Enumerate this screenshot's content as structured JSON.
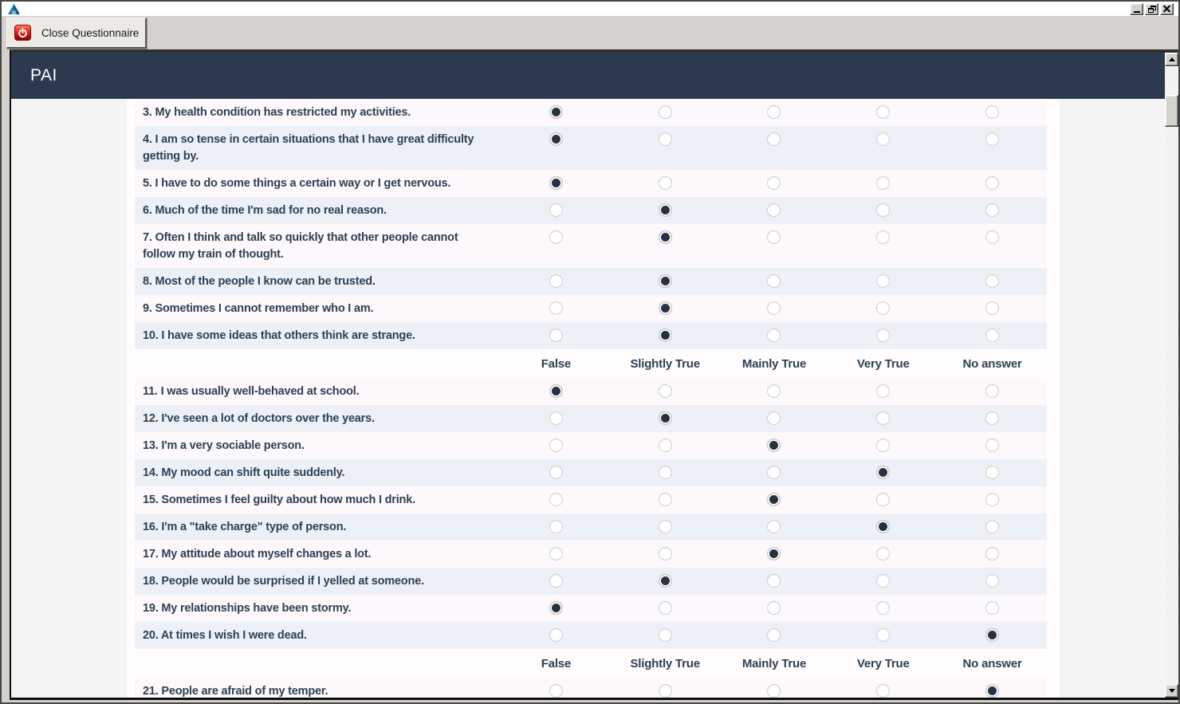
{
  "page": {
    "title": "PAI"
  },
  "toolbar": {
    "close_button": "Close Questionnaire"
  },
  "window_controls": {
    "minimize": "minimize",
    "restore": "restore",
    "close": "close"
  },
  "option_labels": [
    "False",
    "Slightly True",
    "Mainly True",
    "Very True",
    "No answer"
  ],
  "option_header_before": [
    11,
    21
  ],
  "questions": [
    {
      "number": "3",
      "text": "3. My health condition has restricted my activities.",
      "answer": "False"
    },
    {
      "number": "4",
      "text": "4. I am so tense in certain situations that I have great difficulty getting by.",
      "answer": "False"
    },
    {
      "number": "5",
      "text": "5. I have to do some things a certain way or I get nervous.",
      "answer": "False"
    },
    {
      "number": "6",
      "text": "6. Much of the time I'm sad for no real reason.",
      "answer": "Slightly True"
    },
    {
      "number": "7",
      "text": "7. Often I think and talk so quickly that other people cannot follow my train of thought.",
      "answer": "Slightly True"
    },
    {
      "number": "8",
      "text": "8. Most of the people I know can be trusted.",
      "answer": "Slightly True"
    },
    {
      "number": "9",
      "text": "9. Sometimes I cannot remember who I am.",
      "answer": "Slightly True"
    },
    {
      "number": "10",
      "text": "10. I have some ideas that others think are strange.",
      "answer": "Slightly True"
    },
    {
      "number": "11",
      "text": "11. I was usually well-behaved at school.",
      "answer": "False"
    },
    {
      "number": "12",
      "text": "12. I've seen a lot of doctors over the years.",
      "answer": "Slightly True"
    },
    {
      "number": "13",
      "text": "13. I'm a very sociable person.",
      "answer": "Mainly True"
    },
    {
      "number": "14",
      "text": "14. My mood can shift quite suddenly.",
      "answer": "Very True"
    },
    {
      "number": "15",
      "text": "15. Sometimes I feel guilty about how much I drink.",
      "answer": "Mainly True"
    },
    {
      "number": "16",
      "text": "16. I'm a \"take charge\" type of person.",
      "answer": "Very True"
    },
    {
      "number": "17",
      "text": "17. My attitude about myself changes a lot.",
      "answer": "Mainly True"
    },
    {
      "number": "18",
      "text": "18. People would be surprised if I yelled at someone.",
      "answer": "Slightly True"
    },
    {
      "number": "19",
      "text": "19. My relationships have been stormy.",
      "answer": "False"
    },
    {
      "number": "20",
      "text": "20. At times I wish I were dead.",
      "answer": "No answer"
    },
    {
      "number": "21",
      "text": "21. People are afraid of my temper.",
      "answer": "No answer"
    }
  ],
  "colors": {
    "header_bg": "#2b3a4f",
    "question_text": "#2e4054",
    "row_odd": "#fdf8fb",
    "row_even": "#edf1f7",
    "body_bg": "#f4f4f5",
    "radio_selected": "#263243",
    "power_icon_red": "#c40d06"
  }
}
